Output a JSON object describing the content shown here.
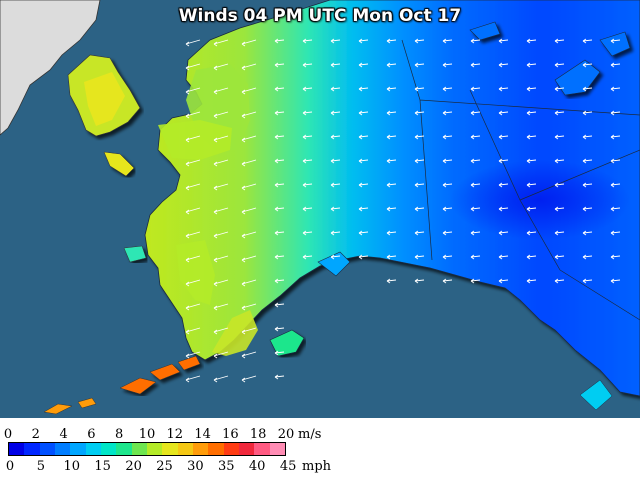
{
  "title": "Winds 04 PM UTC Mon Oct 17",
  "legend": {
    "ms_unit": "m/s",
    "mph_unit": "mph",
    "ms_ticks": [
      "0",
      "2",
      "4",
      "6",
      "8",
      "10",
      "12",
      "14",
      "16",
      "18",
      "20"
    ],
    "mph_ticks": [
      "0",
      "5",
      "10",
      "15",
      "20",
      "25",
      "30",
      "35",
      "40",
      "45"
    ],
    "colors": [
      "#0000e6",
      "#0026ff",
      "#0050ff",
      "#007dff",
      "#00a6ff",
      "#00cdf2",
      "#00e6c8",
      "#1ee68c",
      "#6ee650",
      "#b4eb28",
      "#e6e61e",
      "#f5c814",
      "#ff9c0a",
      "#ff6e00",
      "#ff3c14",
      "#f0283c",
      "#ff5a82",
      "#ff8cb4"
    ]
  },
  "map": {
    "region": "Alaska",
    "ocean_color": "#2c6285",
    "land_outside_color": "#dcdcdc",
    "border_color": "#1a2a40"
  }
}
